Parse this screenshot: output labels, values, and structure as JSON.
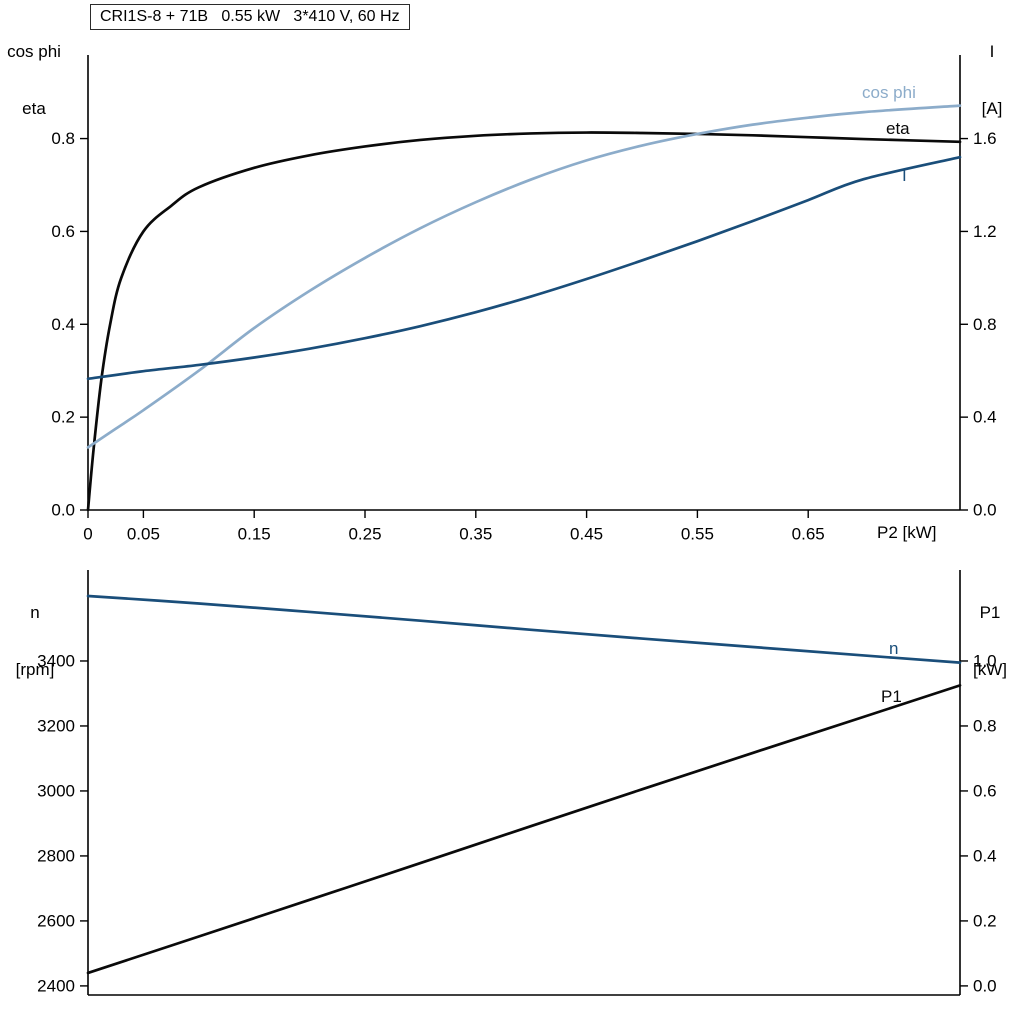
{
  "title_box": "CRI1S-8 + 71B   0.55 kW   3*410 V, 60 Hz",
  "colors": {
    "axis": "#000000",
    "curve_black": "#0a0a0a",
    "curve_dark_blue": "#1a4e7a",
    "curve_light_blue": "#8cacca",
    "background": "#ffffff"
  },
  "labels": {
    "top_left_line1": "cos phi",
    "top_left_line2": "eta",
    "top_right_line1": "I",
    "top_right_line2": "[A]",
    "x_axis_title": "P2 [kW]",
    "bottom_left_line1": "n",
    "bottom_left_line2": "[rpm]",
    "bottom_right_line1": "P1",
    "bottom_right_line2": "[kW]",
    "curve_cos_phi": "cos phi",
    "curve_eta": "eta",
    "curve_I": "I",
    "curve_n": "n",
    "curve_P1": "P1"
  },
  "chart_data": [
    {
      "type": "line",
      "title": "CRI1S-8 + 71B 0.55 kW 3*410 V, 60 Hz",
      "xlabel": "P2 [kW]",
      "ylabel_left": "cos phi / eta",
      "ylabel_right": "I [A]",
      "grid": false,
      "xlim": [
        0,
        0.787
      ],
      "x_ticks": {
        "values": [
          0,
          0.05,
          0.15,
          0.25,
          0.35,
          0.45,
          0.55,
          0.65
        ],
        "labels": [
          "0",
          "0.05",
          "0.15",
          "0.25",
          "0.35",
          "0.45",
          "0.55",
          "0.65"
        ]
      },
      "left_axis": {
        "lim": [
          0,
          0.98
        ],
        "ticks": [
          0,
          0.2,
          0.4,
          0.6,
          0.8
        ],
        "tick_labels": [
          "0.0",
          "0.2",
          "0.4",
          "0.6",
          "0.8"
        ]
      },
      "right_axis": {
        "lim": [
          0,
          1.96
        ],
        "ticks": [
          0,
          0.4,
          0.8,
          1.2,
          1.6
        ],
        "tick_labels": [
          "0.0",
          "0.4",
          "0.8",
          "1.2",
          "1.6"
        ]
      },
      "series": [
        {
          "name": "eta",
          "axis": "left",
          "color": "curve_black",
          "x": [
            0,
            0.005,
            0.012,
            0.02,
            0.03,
            0.05,
            0.075,
            0.1,
            0.15,
            0.2,
            0.25,
            0.3,
            0.35,
            0.4,
            0.45,
            0.5,
            0.55,
            0.6,
            0.65,
            0.7,
            0.787
          ],
          "y": [
            0,
            0.13,
            0.28,
            0.4,
            0.5,
            0.6,
            0.655,
            0.695,
            0.737,
            0.764,
            0.783,
            0.797,
            0.806,
            0.811,
            0.813,
            0.812,
            0.81,
            0.807,
            0.803,
            0.799,
            0.793
          ]
        },
        {
          "name": "cos phi",
          "axis": "left",
          "color": "curve_light_blue",
          "x": [
            0,
            0.025,
            0.05,
            0.1,
            0.15,
            0.2,
            0.25,
            0.3,
            0.35,
            0.4,
            0.45,
            0.5,
            0.55,
            0.6,
            0.65,
            0.7,
            0.787
          ],
          "y": [
            0.135,
            0.175,
            0.215,
            0.3,
            0.392,
            0.472,
            0.543,
            0.607,
            0.663,
            0.712,
            0.753,
            0.785,
            0.81,
            0.83,
            0.845,
            0.857,
            0.871
          ]
        },
        {
          "name": "I",
          "axis": "right",
          "color": "curve_dark_blue",
          "x": [
            0,
            0.05,
            0.1,
            0.15,
            0.2,
            0.25,
            0.3,
            0.35,
            0.4,
            0.45,
            0.5,
            0.55,
            0.6,
            0.65,
            0.7,
            0.787
          ],
          "y": [
            0.565,
            0.598,
            0.625,
            0.657,
            0.695,
            0.74,
            0.792,
            0.852,
            0.92,
            0.995,
            1.075,
            1.158,
            1.245,
            1.335,
            1.425,
            1.52
          ]
        }
      ]
    },
    {
      "type": "line",
      "title": "",
      "xlabel": "",
      "ylabel_left": "n [rpm]",
      "ylabel_right": "P1 [kW]",
      "grid": false,
      "xlim": [
        0,
        0.787
      ],
      "x_ticks": {
        "values": [],
        "labels": []
      },
      "left_axis": {
        "lim": [
          2372,
          3680
        ],
        "ticks": [
          2400,
          2600,
          2800,
          3000,
          3200,
          3400
        ],
        "tick_labels": [
          "2400",
          "2600",
          "2800",
          "3000",
          "3200",
          "3400"
        ]
      },
      "right_axis": {
        "lim": [
          -0.028,
          1.28
        ],
        "ticks": [
          0,
          0.2,
          0.4,
          0.6,
          0.8,
          1.0
        ],
        "tick_labels": [
          "0.0",
          "0.2",
          "0.4",
          "0.6",
          "0.8",
          "1.0"
        ]
      },
      "series": [
        {
          "name": "n",
          "axis": "left",
          "color": "curve_dark_blue",
          "x": [
            0,
            0.1,
            0.2,
            0.3,
            0.4,
            0.5,
            0.6,
            0.7,
            0.787
          ],
          "y": [
            3600,
            3577,
            3551,
            3524,
            3496,
            3469,
            3443,
            3417,
            3395
          ]
        },
        {
          "name": "P1",
          "axis": "right",
          "color": "curve_black",
          "x": [
            0,
            0.1,
            0.2,
            0.3,
            0.4,
            0.5,
            0.6,
            0.7,
            0.787
          ],
          "y": [
            0.04,
            0.152,
            0.265,
            0.378,
            0.492,
            0.605,
            0.717,
            0.828,
            0.925
          ]
        }
      ]
    }
  ]
}
